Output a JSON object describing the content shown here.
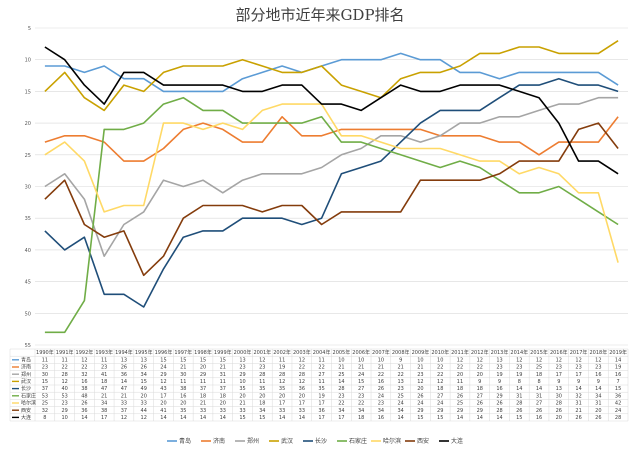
{
  "chart_data": {
    "type": "line",
    "title": "部分地市近年来GDP排名",
    "ylim": [
      55,
      5
    ],
    "y_ticks": [
      5,
      10,
      15,
      20,
      25,
      30,
      35,
      40,
      45,
      50,
      55
    ],
    "grid": true,
    "legend_position": "bottom",
    "categories": [
      "1990年",
      "1991年",
      "1992年",
      "1993年",
      "1994年",
      "1995年",
      "1996年",
      "1997年",
      "1998年",
      "1999年",
      "2000年",
      "2001年",
      "2002年",
      "2003年",
      "2004年",
      "2005年",
      "2006年",
      "2007年",
      "2008年",
      "2009年",
      "2010年",
      "2011年",
      "2012年",
      "2013年",
      "2014年",
      "2015年",
      "2016年",
      "2017年",
      "2018年",
      "2019年"
    ],
    "series": [
      {
        "name": "青岛",
        "color": "#5B9BD5",
        "values": [
          11,
          11,
          12,
          11,
          13,
          13,
          15,
          15,
          15,
          15,
          13,
          12,
          11,
          12,
          11,
          10,
          10,
          10,
          9,
          10,
          10,
          12,
          12,
          13,
          12,
          12,
          12,
          12,
          12,
          14
        ]
      },
      {
        "name": "济南",
        "color": "#ED7D31",
        "values": [
          23,
          22,
          22,
          23,
          26,
          26,
          24,
          21,
          20,
          21,
          23,
          23,
          19,
          22,
          22,
          21,
          21,
          21,
          21,
          21,
          22,
          22,
          22,
          23,
          23,
          25,
          23,
          23,
          23,
          19
        ]
      },
      {
        "name": "郑州",
        "color": "#A5A5A5",
        "values": [
          30,
          28,
          32,
          41,
          36,
          34,
          29,
          30,
          29,
          31,
          29,
          28,
          28,
          28,
          27,
          25,
          24,
          22,
          22,
          23,
          22,
          20,
          20,
          19,
          19,
          18,
          17,
          17,
          16,
          16
        ]
      },
      {
        "name": "武汉",
        "color": "#C9A100",
        "values": [
          15,
          12,
          16,
          18,
          14,
          15,
          12,
          11,
          11,
          11,
          10,
          11,
          12,
          12,
          11,
          14,
          15,
          16,
          13,
          12,
          12,
          11,
          9,
          9,
          8,
          8,
          9,
          9,
          9,
          7
        ]
      },
      {
        "name": "长沙",
        "color": "#1F4E79",
        "values": [
          37,
          40,
          38,
          47,
          47,
          49,
          43,
          38,
          37,
          37,
          35,
          35,
          35,
          36,
          35,
          28,
          27,
          26,
          23,
          20,
          18,
          18,
          18,
          16,
          14,
          14,
          13,
          14,
          14,
          15
        ]
      },
      {
        "name": "石家庄",
        "color": "#70AD47",
        "values": [
          53,
          53,
          48,
          21,
          21,
          20,
          17,
          16,
          18,
          18,
          20,
          20,
          20,
          20,
          19,
          23,
          23,
          24,
          25,
          26,
          27,
          26,
          27,
          29,
          31,
          31,
          30,
          32,
          34,
          36
        ]
      },
      {
        "name": "哈尔滨",
        "color": "#FFD966",
        "values": [
          25,
          23,
          26,
          34,
          33,
          33,
          20,
          20,
          21,
          20,
          21,
          18,
          17,
          17,
          17,
          22,
          22,
          23,
          24,
          24,
          24,
          25,
          26,
          26,
          28,
          27,
          28,
          31,
          31,
          42
        ]
      },
      {
        "name": "西安",
        "color": "#843C0C",
        "values": [
          32,
          29,
          36,
          38,
          37,
          44,
          41,
          35,
          33,
          33,
          33,
          34,
          33,
          33,
          36,
          34,
          34,
          34,
          34,
          29,
          29,
          29,
          29,
          28,
          26,
          26,
          26,
          21,
          20,
          24
        ]
      },
      {
        "name": "大连",
        "color": "#000000",
        "values": [
          8,
          10,
          14,
          17,
          12,
          12,
          14,
          14,
          14,
          14,
          15,
          15,
          14,
          14,
          17,
          17,
          18,
          16,
          14,
          15,
          15,
          14,
          14,
          14,
          15,
          16,
          20,
          26,
          26,
          28
        ]
      }
    ]
  }
}
